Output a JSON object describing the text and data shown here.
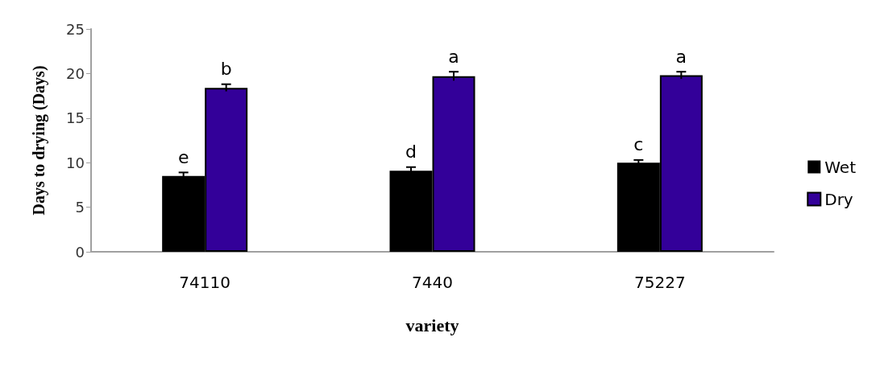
{
  "chart_data": {
    "type": "bar",
    "xlabel": "variety",
    "ylabel": "Days to drying (Days)",
    "categories": [
      "74110",
      "7440",
      "75227"
    ],
    "series": [
      {
        "name": "Wet",
        "color": "#000000",
        "values": [
          8.5,
          9.1,
          10.0
        ],
        "errors": [
          0.4,
          0.4,
          0.3
        ]
      },
      {
        "name": "Dry",
        "color": "#330099",
        "values": [
          18.4,
          19.7,
          19.8
        ],
        "errors": [
          0.4,
          0.5,
          0.4
        ]
      }
    ],
    "ylim": [
      0,
      25
    ],
    "yticks": [
      0,
      5,
      10,
      15,
      20,
      25
    ],
    "grid": false,
    "legend": "right",
    "annotations": [
      {
        "text": "e",
        "x": "74110",
        "y": 8.5
      },
      {
        "text": "b",
        "x": "74110",
        "y": 18.4
      },
      {
        "text": "d",
        "x": "7440",
        "y": 9.1
      },
      {
        "text": "a",
        "x": "7440",
        "y": 19.7
      },
      {
        "text": "c",
        "x": "75227",
        "y": 10.0
      },
      {
        "text": "a",
        "x": "75227",
        "y": 19.8
      }
    ]
  }
}
